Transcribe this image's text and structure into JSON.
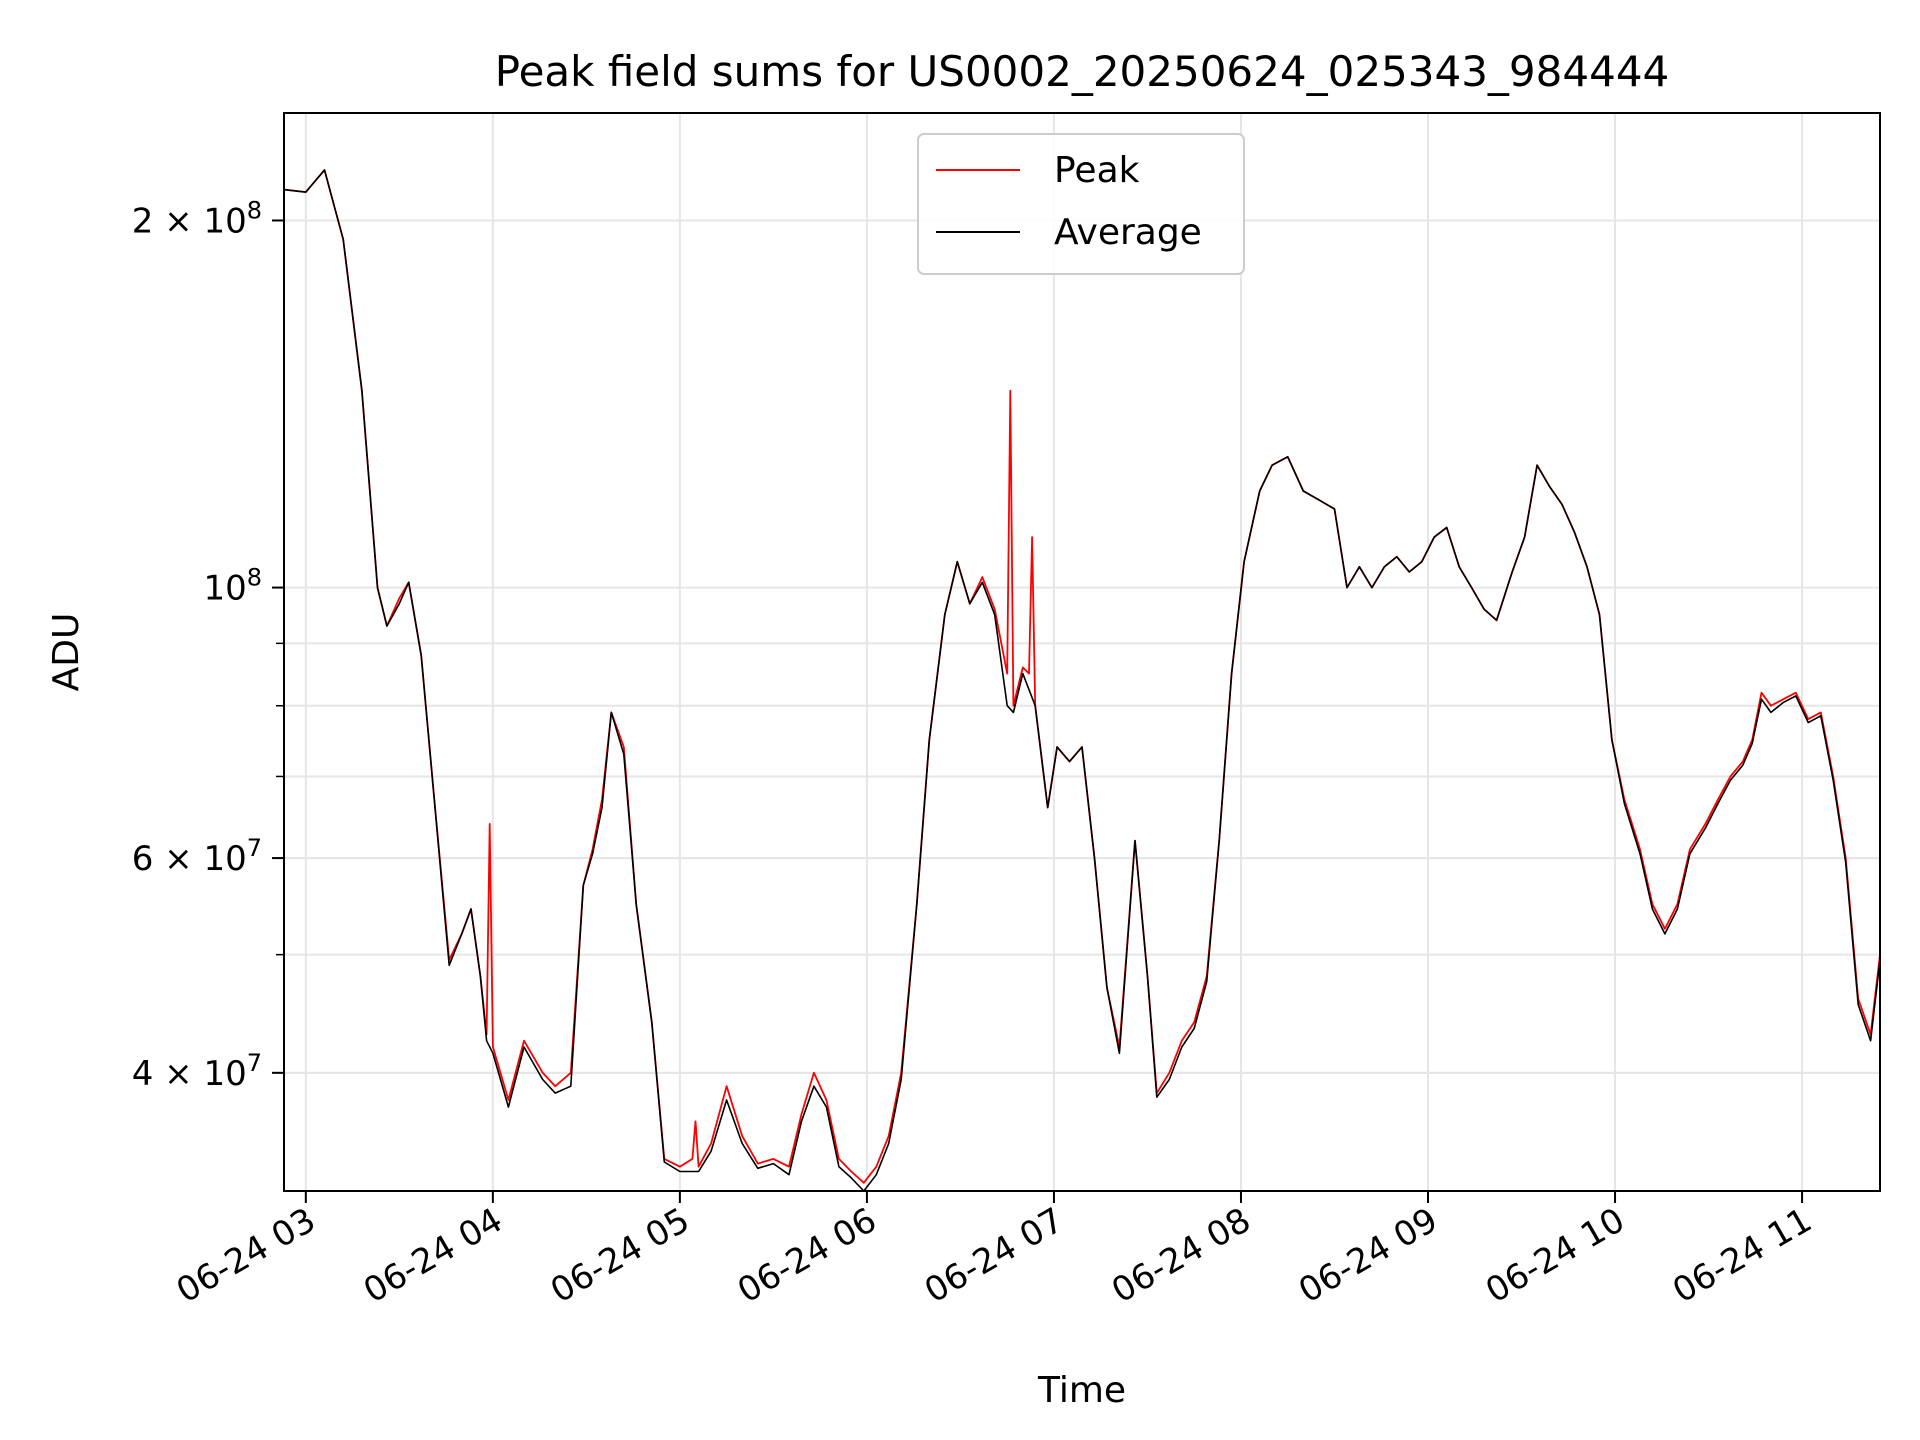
{
  "chart_data": {
    "type": "line",
    "title": "Peak field sums for US0002_20250624_025343_984444",
    "xlabel": "Time",
    "ylabel": "ADU",
    "y_scale": "log",
    "ylim": [
      32000000,
      245000000
    ],
    "xlim": [
      "06-24 02:53",
      "06-24 11:25"
    ],
    "x_ticks": [
      "06-24 03",
      "06-24 04",
      "06-24 05",
      "06-24 06",
      "06-24 07",
      "06-24 08",
      "06-24 09",
      "06-24 10",
      "06-24 11"
    ],
    "y_ticks": [
      {
        "value": 40000000,
        "mantissa": "4",
        "exponent": "7"
      },
      {
        "value": 60000000,
        "mantissa": "6",
        "exponent": "7"
      },
      {
        "value": 100000000,
        "mantissa": "",
        "exponent": "8"
      },
      {
        "value": 200000000,
        "mantissa": "2",
        "exponent": "8"
      }
    ],
    "grid": true,
    "legend_position": "top-center",
    "series": [
      {
        "name": "Peak",
        "color": "#ff0000",
        "points": [
          [
            "06-24 02:53",
            212000000
          ],
          [
            "06-24 03:00",
            211000000
          ],
          [
            "06-24 03:06",
            220000000
          ],
          [
            "06-24 03:12",
            193000000
          ],
          [
            "06-24 03:18",
            145000000
          ],
          [
            "06-24 03:23",
            100000000
          ],
          [
            "06-24 03:26",
            93000000
          ],
          [
            "06-24 03:30",
            98000000
          ],
          [
            "06-24 03:33",
            101000000
          ],
          [
            "06-24 03:37",
            88000000
          ],
          [
            "06-24 03:41",
            68000000
          ],
          [
            "06-24 03:46",
            49500000
          ],
          [
            "06-24 03:50",
            52000000
          ],
          [
            "06-24 03:53",
            54500000
          ],
          [
            "06-24 03:56",
            48000000
          ],
          [
            "06-24 03:58",
            43000000
          ],
          [
            "06-24 03:59",
            64000000
          ],
          [
            "06-24 04:00",
            42000000
          ],
          [
            "06-24 04:05",
            38000000
          ],
          [
            "06-24 04:10",
            42500000
          ],
          [
            "06-24 04:16",
            40000000
          ],
          [
            "06-24 04:20",
            39000000
          ],
          [
            "06-24 04:25",
            40000000
          ],
          [
            "06-24 04:29",
            57000000
          ],
          [
            "06-24 04:32",
            61000000
          ],
          [
            "06-24 04:35",
            67000000
          ],
          [
            "06-24 04:38",
            79000000
          ],
          [
            "06-24 04:42",
            74000000
          ],
          [
            "06-24 04:46",
            55000000
          ],
          [
            "06-24 04:51",
            44000000
          ],
          [
            "06-24 04:55",
            34000000
          ],
          [
            "06-24 05:00",
            33500000
          ],
          [
            "06-24 05:04",
            34000000
          ],
          [
            "06-24 05:05",
            36500000
          ],
          [
            "06-24 05:06",
            33500000
          ],
          [
            "06-24 05:10",
            35000000
          ],
          [
            "06-24 05:15",
            39000000
          ],
          [
            "06-24 05:20",
            35500000
          ],
          [
            "06-24 05:25",
            33700000
          ],
          [
            "06-24 05:30",
            34000000
          ],
          [
            "06-24 05:35",
            33500000
          ],
          [
            "06-24 05:39",
            37000000
          ],
          [
            "06-24 05:43",
            40000000
          ],
          [
            "06-24 05:47",
            38000000
          ],
          [
            "06-24 05:51",
            34000000
          ],
          [
            "06-24 05:55",
            33200000
          ],
          [
            "06-24 05:59",
            32500000
          ],
          [
            "06-24 06:03",
            33500000
          ],
          [
            "06-24 06:07",
            35500000
          ],
          [
            "06-24 06:11",
            40000000
          ],
          [
            "06-24 06:16",
            55000000
          ],
          [
            "06-24 06:20",
            75000000
          ],
          [
            "06-24 06:25",
            95000000
          ],
          [
            "06-24 06:29",
            105000000
          ],
          [
            "06-24 06:33",
            97000000
          ],
          [
            "06-24 06:37",
            102000000
          ],
          [
            "06-24 06:41",
            96000000
          ],
          [
            "06-24 06:45",
            85000000
          ],
          [
            "06-24 06:46",
            145000000
          ],
          [
            "06-24 06:47",
            80000000
          ],
          [
            "06-24 06:50",
            86000000
          ],
          [
            "06-24 06:52",
            85000000
          ],
          [
            "06-24 06:53",
            110000000
          ],
          [
            "06-24 06:54",
            80000000
          ],
          [
            "06-24 06:58",
            66000000
          ],
          [
            "06-24 07:01",
            74000000
          ],
          [
            "06-24 07:05",
            72000000
          ],
          [
            "06-24 07:09",
            74000000
          ],
          [
            "06-24 07:13",
            60000000
          ],
          [
            "06-24 07:17",
            47000000
          ],
          [
            "06-24 07:21",
            42000000
          ],
          [
            "06-24 07:26",
            62000000
          ],
          [
            "06-24 07:30",
            48000000
          ],
          [
            "06-24 07:33",
            38500000
          ],
          [
            "06-24 07:37",
            40000000
          ],
          [
            "06-24 07:41",
            42500000
          ],
          [
            "06-24 07:45",
            44000000
          ],
          [
            "06-24 07:49",
            48000000
          ],
          [
            "06-24 07:53",
            62000000
          ],
          [
            "06-24 07:57",
            85000000
          ],
          [
            "06-24 08:01",
            105000000
          ],
          [
            "06-24 08:06",
            120000000
          ],
          [
            "06-24 08:10",
            126000000
          ],
          [
            "06-24 08:15",
            128000000
          ],
          [
            "06-24 08:20",
            120000000
          ],
          [
            "06-24 08:25",
            118000000
          ],
          [
            "06-24 08:30",
            116000000
          ],
          [
            "06-24 08:34",
            100000000
          ],
          [
            "06-24 08:38",
            104000000
          ],
          [
            "06-24 08:42",
            100000000
          ],
          [
            "06-24 08:46",
            104000000
          ],
          [
            "06-24 08:50",
            106000000
          ],
          [
            "06-24 08:54",
            103000000
          ],
          [
            "06-24 08:58",
            105000000
          ],
          [
            "06-24 09:02",
            110000000
          ],
          [
            "06-24 09:06",
            112000000
          ],
          [
            "06-24 09:10",
            104000000
          ],
          [
            "06-24 09:14",
            100000000
          ],
          [
            "06-24 09:18",
            96000000
          ],
          [
            "06-24 09:22",
            94000000
          ],
          [
            "06-24 09:27",
            103000000
          ],
          [
            "06-24 09:31",
            110000000
          ],
          [
            "06-24 09:35",
            126000000
          ],
          [
            "06-24 09:39",
            121000000
          ],
          [
            "06-24 09:43",
            117000000
          ],
          [
            "06-24 09:47",
            111000000
          ],
          [
            "06-24 09:51",
            104000000
          ],
          [
            "06-24 09:55",
            95000000
          ],
          [
            "06-24 09:59",
            75000000
          ],
          [
            "06-24 10:03",
            67000000
          ],
          [
            "06-24 10:08",
            61000000
          ],
          [
            "06-24 10:12",
            55000000
          ],
          [
            "06-24 10:16",
            52500000
          ],
          [
            "06-24 10:20",
            55000000
          ],
          [
            "06-24 10:24",
            61000000
          ],
          [
            "06-24 10:29",
            64000000
          ],
          [
            "06-24 10:33",
            67000000
          ],
          [
            "06-24 10:37",
            70000000
          ],
          [
            "06-24 10:41",
            72000000
          ],
          [
            "06-24 10:44",
            75000000
          ],
          [
            "06-24 10:47",
            82000000
          ],
          [
            "06-24 10:50",
            80000000
          ],
          [
            "06-24 10:54",
            81000000
          ],
          [
            "06-24 10:58",
            82000000
          ],
          [
            "06-24 11:02",
            78000000
          ],
          [
            "06-24 11:06",
            79000000
          ],
          [
            "06-24 11:10",
            70000000
          ],
          [
            "06-24 11:14",
            60000000
          ],
          [
            "06-24 11:18",
            46000000
          ],
          [
            "06-24 11:22",
            43000000
          ],
          [
            "06-24 11:25",
            50000000
          ]
        ]
      },
      {
        "name": "Average",
        "color": "#000000",
        "points": [
          [
            "06-24 02:53",
            212000000
          ],
          [
            "06-24 03:00",
            211000000
          ],
          [
            "06-24 03:06",
            220000000
          ],
          [
            "06-24 03:12",
            193000000
          ],
          [
            "06-24 03:18",
            145000000
          ],
          [
            "06-24 03:23",
            100000000
          ],
          [
            "06-24 03:26",
            93000000
          ],
          [
            "06-24 03:30",
            97000000
          ],
          [
            "06-24 03:33",
            101000000
          ],
          [
            "06-24 03:37",
            88000000
          ],
          [
            "06-24 03:41",
            68000000
          ],
          [
            "06-24 03:46",
            49000000
          ],
          [
            "06-24 03:50",
            52000000
          ],
          [
            "06-24 03:53",
            54500000
          ],
          [
            "06-24 03:56",
            48000000
          ],
          [
            "06-24 03:58",
            42500000
          ],
          [
            "06-24 04:00",
            41500000
          ],
          [
            "06-24 04:05",
            37500000
          ],
          [
            "06-24 04:10",
            42000000
          ],
          [
            "06-24 04:16",
            39500000
          ],
          [
            "06-24 04:20",
            38500000
          ],
          [
            "06-24 04:25",
            39000000
          ],
          [
            "06-24 04:29",
            57000000
          ],
          [
            "06-24 04:32",
            60500000
          ],
          [
            "06-24 04:35",
            66000000
          ],
          [
            "06-24 04:38",
            79000000
          ],
          [
            "06-24 04:42",
            73000000
          ],
          [
            "06-24 04:46",
            55000000
          ],
          [
            "06-24 04:51",
            44000000
          ],
          [
            "06-24 04:55",
            33800000
          ],
          [
            "06-24 05:00",
            33200000
          ],
          [
            "06-24 05:06",
            33200000
          ],
          [
            "06-24 05:10",
            34500000
          ],
          [
            "06-24 05:15",
            38000000
          ],
          [
            "06-24 05:20",
            35000000
          ],
          [
            "06-24 05:25",
            33400000
          ],
          [
            "06-24 05:30",
            33700000
          ],
          [
            "06-24 05:35",
            33000000
          ],
          [
            "06-24 05:39",
            36500000
          ],
          [
            "06-24 05:43",
            39000000
          ],
          [
            "06-24 05:47",
            37500000
          ],
          [
            "06-24 05:51",
            33500000
          ],
          [
            "06-24 05:55",
            32800000
          ],
          [
            "06-24 05:59",
            32000000
          ],
          [
            "06-24 06:03",
            33000000
          ],
          [
            "06-24 06:07",
            35000000
          ],
          [
            "06-24 06:11",
            39500000
          ],
          [
            "06-24 06:16",
            55000000
          ],
          [
            "06-24 06:20",
            75000000
          ],
          [
            "06-24 06:25",
            95000000
          ],
          [
            "06-24 06:29",
            105000000
          ],
          [
            "06-24 06:33",
            97000000
          ],
          [
            "06-24 06:37",
            101000000
          ],
          [
            "06-24 06:41",
            95000000
          ],
          [
            "06-24 06:45",
            80000000
          ],
          [
            "06-24 06:47",
            79000000
          ],
          [
            "06-24 06:50",
            85000000
          ],
          [
            "06-24 06:54",
            80000000
          ],
          [
            "06-24 06:58",
            66000000
          ],
          [
            "06-24 07:01",
            74000000
          ],
          [
            "06-24 07:05",
            72000000
          ],
          [
            "06-24 07:09",
            74000000
          ],
          [
            "06-24 07:13",
            60000000
          ],
          [
            "06-24 07:17",
            47000000
          ],
          [
            "06-24 07:21",
            41500000
          ],
          [
            "06-24 07:26",
            62000000
          ],
          [
            "06-24 07:30",
            48000000
          ],
          [
            "06-24 07:33",
            38200000
          ],
          [
            "06-24 07:37",
            39500000
          ],
          [
            "06-24 07:41",
            42000000
          ],
          [
            "06-24 07:45",
            43500000
          ],
          [
            "06-24 07:49",
            47500000
          ],
          [
            "06-24 07:53",
            62000000
          ],
          [
            "06-24 07:57",
            85000000
          ],
          [
            "06-24 08:01",
            105000000
          ],
          [
            "06-24 08:06",
            120000000
          ],
          [
            "06-24 08:10",
            126000000
          ],
          [
            "06-24 08:15",
            128000000
          ],
          [
            "06-24 08:20",
            120000000
          ],
          [
            "06-24 08:25",
            118000000
          ],
          [
            "06-24 08:30",
            116000000
          ],
          [
            "06-24 08:34",
            100000000
          ],
          [
            "06-24 08:38",
            104000000
          ],
          [
            "06-24 08:42",
            100000000
          ],
          [
            "06-24 08:46",
            104000000
          ],
          [
            "06-24 08:50",
            106000000
          ],
          [
            "06-24 08:54",
            103000000
          ],
          [
            "06-24 08:58",
            105000000
          ],
          [
            "06-24 09:02",
            110000000
          ],
          [
            "06-24 09:06",
            112000000
          ],
          [
            "06-24 09:10",
            104000000
          ],
          [
            "06-24 09:14",
            100000000
          ],
          [
            "06-24 09:18",
            96000000
          ],
          [
            "06-24 09:22",
            94000000
          ],
          [
            "06-24 09:27",
            103000000
          ],
          [
            "06-24 09:31",
            110000000
          ],
          [
            "06-24 09:35",
            126000000
          ],
          [
            "06-24 09:39",
            121000000
          ],
          [
            "06-24 09:43",
            117000000
          ],
          [
            "06-24 09:47",
            111000000
          ],
          [
            "06-24 09:51",
            104000000
          ],
          [
            "06-24 09:55",
            95000000
          ],
          [
            "06-24 09:59",
            75000000
          ],
          [
            "06-24 10:03",
            66500000
          ],
          [
            "06-24 10:08",
            60500000
          ],
          [
            "06-24 10:12",
            54500000
          ],
          [
            "06-24 10:16",
            52000000
          ],
          [
            "06-24 10:20",
            54500000
          ],
          [
            "06-24 10:24",
            60500000
          ],
          [
            "06-24 10:29",
            63500000
          ],
          [
            "06-24 10:33",
            66500000
          ],
          [
            "06-24 10:37",
            69500000
          ],
          [
            "06-24 10:41",
            71500000
          ],
          [
            "06-24 10:44",
            74500000
          ],
          [
            "06-24 10:47",
            81000000
          ],
          [
            "06-24 10:50",
            79000000
          ],
          [
            "06-24 10:54",
            80500000
          ],
          [
            "06-24 10:58",
            81500000
          ],
          [
            "06-24 11:02",
            77500000
          ],
          [
            "06-24 11:06",
            78500000
          ],
          [
            "06-24 11:10",
            69500000
          ],
          [
            "06-24 11:14",
            59500000
          ],
          [
            "06-24 11:18",
            45500000
          ],
          [
            "06-24 11:22",
            42500000
          ],
          [
            "06-24 11:25",
            49500000
          ]
        ]
      }
    ]
  }
}
